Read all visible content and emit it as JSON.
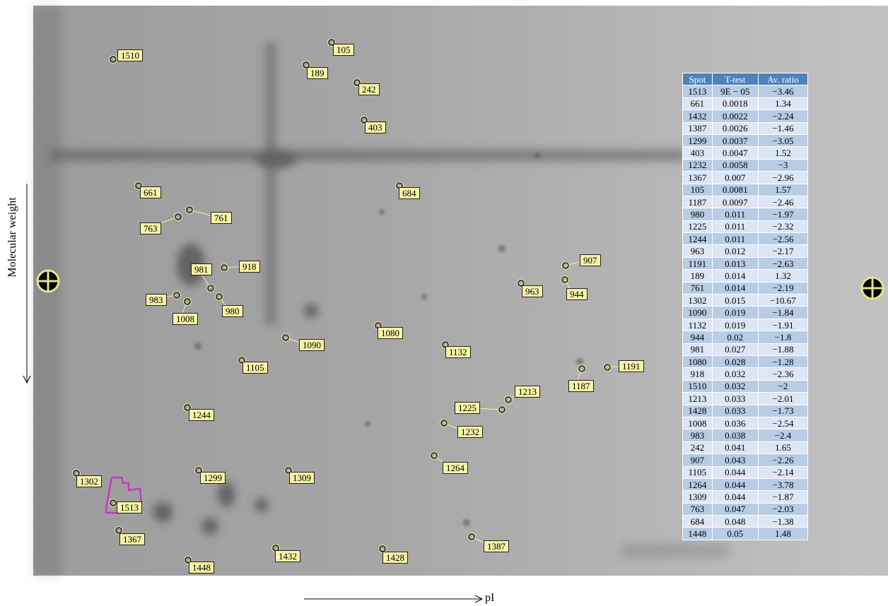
{
  "axes": {
    "y_label": "Molecular weight",
    "x_label": "pI"
  },
  "spots": [
    "1510",
    "105",
    "189",
    "242",
    "403",
    "661",
    "684",
    "761",
    "763",
    "981",
    "918",
    "983",
    "1008",
    "980",
    "963",
    "907",
    "944",
    "1090",
    "1080",
    "1132",
    "1105",
    "1187",
    "1191",
    "1213",
    "1225",
    "1232",
    "1244",
    "1264",
    "1302",
    "1299",
    "1309",
    "1513",
    "1367",
    "1387",
    "1432",
    "1428",
    "1448"
  ],
  "table": {
    "header": [
      "Spot",
      "T-test",
      "Av. ratio"
    ],
    "rows": [
      [
        "1513",
        "9E − 05",
        "−3.46"
      ],
      [
        "661",
        "0.0018",
        "1.34"
      ],
      [
        "1432",
        "0.0022",
        "−2.24"
      ],
      [
        "1387",
        "0.0026",
        "−1.46"
      ],
      [
        "1299",
        "0.0037",
        "−3.05"
      ],
      [
        "403",
        "0.0047",
        "1.52"
      ],
      [
        "1232",
        "0.0058",
        "−3"
      ],
      [
        "1367",
        "0.007",
        "−2.96"
      ],
      [
        "105",
        "0.0081",
        "1.57"
      ],
      [
        "1187",
        "0.0097",
        "−2.46"
      ],
      [
        "980",
        "0.011",
        "−1.97"
      ],
      [
        "1225",
        "0.011",
        "−2.32"
      ],
      [
        "1244",
        "0.011",
        "−2.56"
      ],
      [
        "963",
        "0.012",
        "−2.17"
      ],
      [
        "1191",
        "0.013",
        "−2.63"
      ],
      [
        "189",
        "0.014",
        "1.32"
      ],
      [
        "761",
        "0.014",
        "−2.19"
      ],
      [
        "1302",
        "0.015",
        "−10.67"
      ],
      [
        "1090",
        "0.019",
        "−1.84"
      ],
      [
        "1132",
        "0.019",
        "−1.91"
      ],
      [
        "944",
        "0.02",
        "−1.8"
      ],
      [
        "981",
        "0.027",
        "−1.88"
      ],
      [
        "1080",
        "0.028",
        "−1.28"
      ],
      [
        "918",
        "0.032",
        "−2.36"
      ],
      [
        "1510",
        "0.032",
        "−2"
      ],
      [
        "1213",
        "0.033",
        "−2.01"
      ],
      [
        "1428",
        "0.033",
        "−1.73"
      ],
      [
        "1008",
        "0.036",
        "−2.54"
      ],
      [
        "983",
        "0.038",
        "−2.4"
      ],
      [
        "242",
        "0.041",
        "1.65"
      ],
      [
        "907",
        "0.043",
        "−2.26"
      ],
      [
        "1105",
        "0.044",
        "−2.14"
      ],
      [
        "1264",
        "0.044",
        "−3.78"
      ],
      [
        "1309",
        "0.044",
        "−1.87"
      ],
      [
        "763",
        "0.047",
        "−2.03"
      ],
      [
        "684",
        "0.048",
        "−1.38"
      ],
      [
        "1448",
        "0.05",
        "1.48"
      ]
    ]
  }
}
